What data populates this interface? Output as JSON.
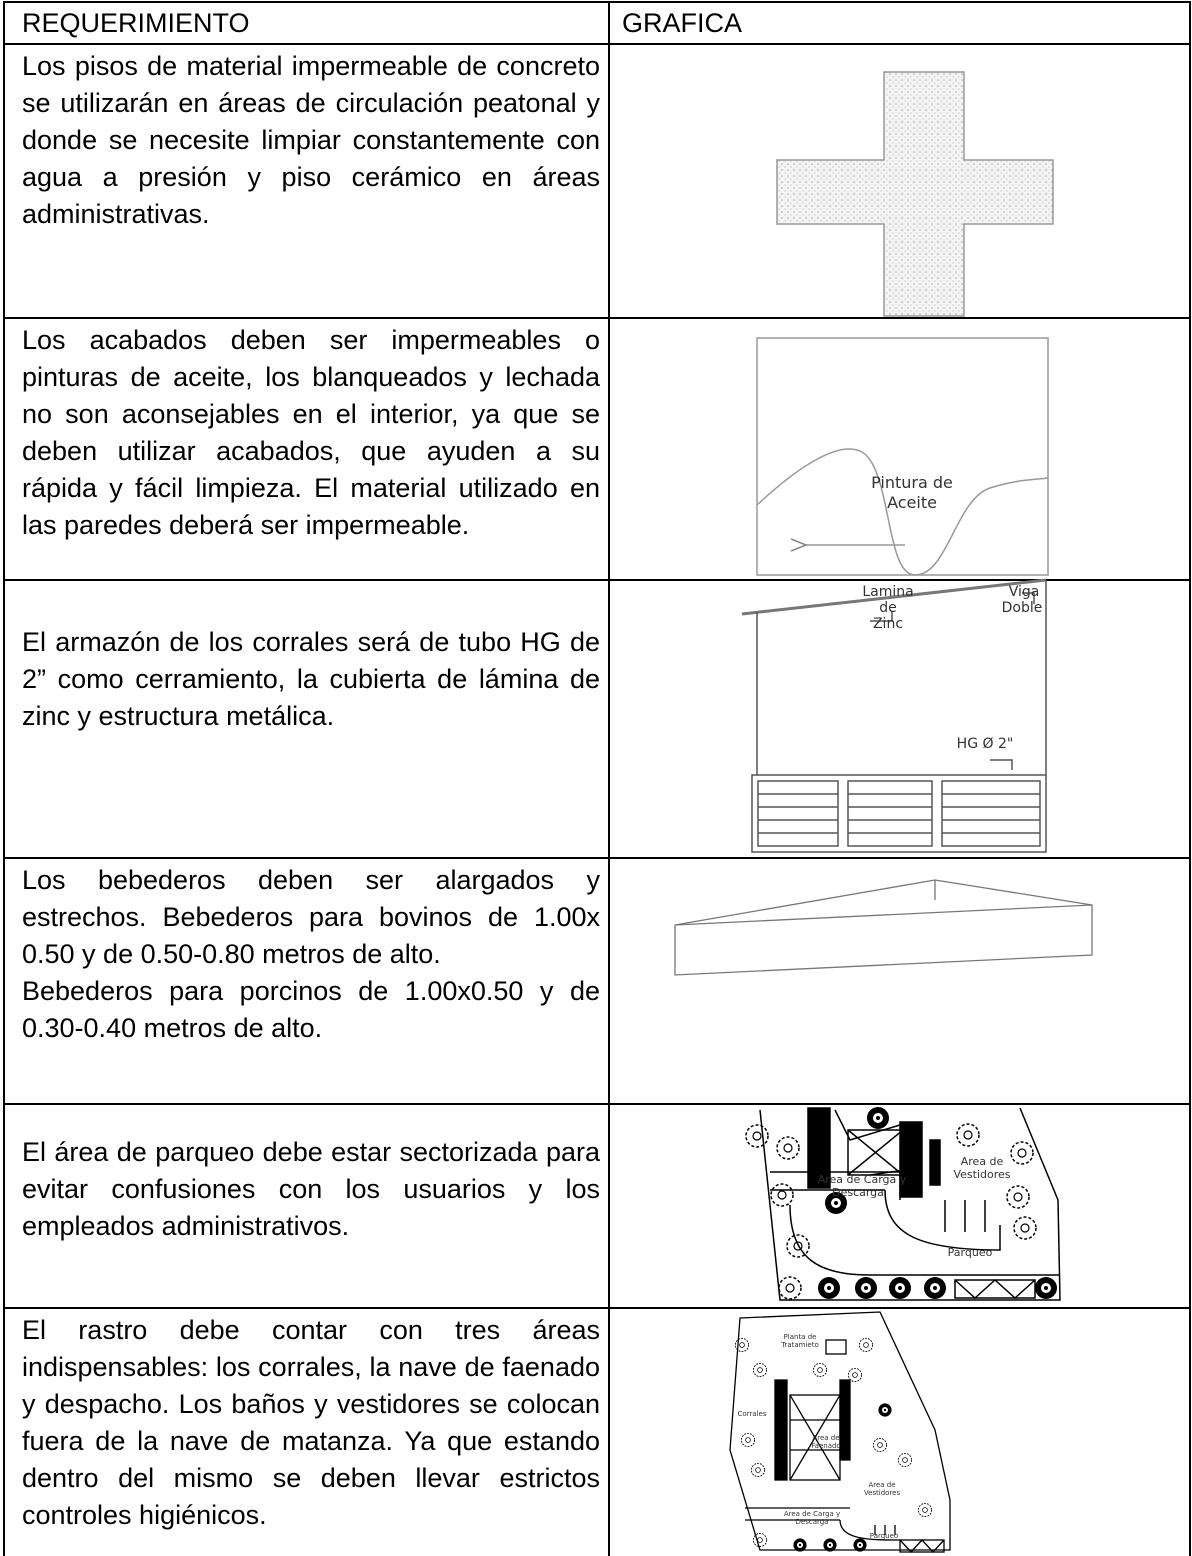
{
  "table": {
    "header": [
      "REQUERIMIENTO",
      "GRAFICA"
    ],
    "rows": [
      {
        "requirement": [
          "Los pisos de material impermeable de concreto se utilizarán en áreas de circulación peatonal y donde se necesite limpiar constantemente con agua a presión y piso cerámico en áreas administrativas."
        ]
      },
      {
        "requirement": [
          "Los acabados deben ser impermeables o pinturas de aceite, los blanqueados y lechada no son aconsejables en el interior, ya que se deben utilizar acabados, que ayuden a su rápida y fácil limpieza. El material utilizado en las paredes deberá ser impermeable."
        ],
        "graphic_labels": [
          [
            "Pintura de",
            "Aceite"
          ]
        ]
      },
      {
        "requirement": [
          "El armazón de los corrales será de tubo HG de 2” como cerramiento, la cubierta de lámina de zinc y estructura metálica."
        ],
        "graphic_labels": [
          [
            "Lamina",
            "de",
            "Zinc"
          ],
          [
            "Viga",
            "Doble"
          ],
          [
            "HG Ø 2\""
          ]
        ]
      },
      {
        "requirement": [
          "Los bebederos deben ser alargados y estrechos. Bebederos para bovinos de 1.00x 0.50 y de 0.50-0.80 metros de alto.",
          "Bebederos para porcinos de 1.00x0.50 y de 0.30-0.40 metros de alto."
        ]
      },
      {
        "requirement": [
          "El área de parqueo debe estar sectorizada para evitar confusiones con los usuarios y los empleados administrativos."
        ],
        "graphic_labels": [
          [
            "Area de",
            "Vestidores"
          ],
          [
            "Area de Carga y",
            "Descarga"
          ],
          [
            "Parqueo"
          ]
        ]
      },
      {
        "requirement": [
          "El rastro debe contar con tres áreas indispensables: los corrales, la nave de faenado y despacho. Los baños y vestidores se colocan fuera de la nave de matanza. Ya que estando dentro del mismo se deben llevar estrictos controles higiénicos."
        ],
        "graphic_labels": [
          [
            "Planta de",
            "Tratamieto"
          ],
          [
            "Corrales"
          ],
          [
            "Area de",
            "Faenado"
          ],
          [
            "Area de",
            "Vestidores"
          ],
          [
            "Area de Carga y",
            "Descarga"
          ],
          [
            "Parqueo"
          ]
        ]
      }
    ]
  }
}
